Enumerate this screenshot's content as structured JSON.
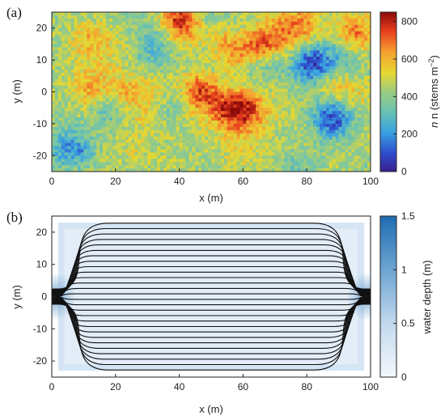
{
  "chart_data": [
    {
      "panel_label": "(a)",
      "type": "heatmap",
      "xlabel": "x (m)",
      "ylabel": "y (m)",
      "xlim": [
        0,
        100
      ],
      "ylim": [
        -25,
        25
      ],
      "xticks": [
        0,
        20,
        40,
        60,
        80,
        100
      ],
      "yticks": [
        -20,
        -10,
        0,
        10,
        20
      ],
      "colorbar": {
        "label_main": "n (stems m",
        "label_sup": "−2",
        "label_close": ")",
        "range": [
          0,
          850
        ],
        "ticks": [
          0,
          200,
          400,
          600,
          800
        ],
        "colormap": "jet"
      },
      "grid": false,
      "notes_visible": {
        "high_density_regions": [
          {
            "x": 40,
            "y": 23,
            "value": 780
          },
          {
            "x": 58,
            "y": 11,
            "value": 760
          },
          {
            "x": 47,
            "y": 0,
            "value": 780
          },
          {
            "x": 56,
            "y": -5,
            "value": 720
          },
          {
            "x": 65,
            "y": 15,
            "value": 720
          },
          {
            "x": 78,
            "y": 20,
            "value": 650
          },
          {
            "x": 95,
            "y": 18,
            "value": 700
          },
          {
            "x": 12,
            "y": 17,
            "value": 650
          },
          {
            "x": 90,
            "y": 2,
            "value": 680
          }
        ],
        "low_density_regions": [
          {
            "x": 81,
            "y": 9,
            "value": 60
          },
          {
            "x": 88,
            "y": -8,
            "value": 80
          },
          {
            "x": 30,
            "y": 14,
            "value": 260
          },
          {
            "x": 20,
            "y": -5,
            "value": 280
          },
          {
            "x": 5,
            "y": -18,
            "value": 240
          }
        ],
        "mean_value": 440
      }
    },
    {
      "panel_label": "(b)",
      "type": "heatmap",
      "xlabel": "x (m)",
      "ylabel": "y (m)",
      "xlim": [
        0,
        100
      ],
      "ylim": [
        -25,
        25
      ],
      "xticks": [
        0,
        20,
        40,
        60,
        80,
        100
      ],
      "yticks": [
        -20,
        -10,
        0,
        10,
        20
      ],
      "colorbar": {
        "label": "water depth (m)",
        "range": [
          0,
          1.5
        ],
        "ticks": [
          0,
          0.5,
          1,
          1.5
        ],
        "tick_labels": [
          "0",
          "0.5",
          "1",
          "1.5"
        ],
        "colormap": "blues"
      },
      "domain": {
        "x": [
          2,
          98
        ],
        "y": [
          -23,
          23
        ]
      },
      "inlet": {
        "x": [
          0,
          2
        ],
        "y": [
          -2.5,
          2.5
        ]
      },
      "outlet": {
        "x": [
          98,
          100
        ],
        "y": [
          -2.5,
          2.5
        ]
      },
      "streamline_outer_y": 22.8,
      "streamline_count": 28,
      "depth_field": {
        "interior": 0.1,
        "edges": 0.2
      },
      "grid": false
    }
  ]
}
